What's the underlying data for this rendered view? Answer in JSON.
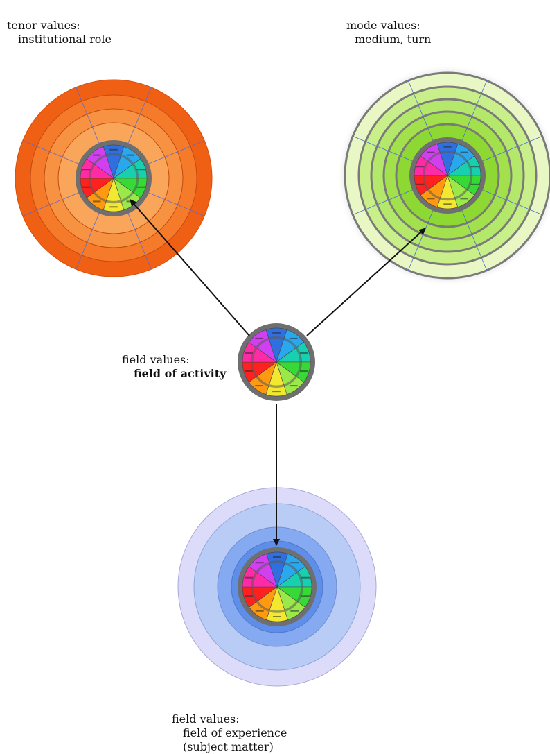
{
  "labels": {
    "tenor": {
      "line1": "tenor values:",
      "line2": "institutional role"
    },
    "mode": {
      "line1": "mode values:",
      "line2": "medium, turn"
    },
    "field_activity": {
      "line1": "field values:",
      "line2": "field of activity"
    },
    "field_experience": {
      "line1": "field values:",
      "line2": "field of experience",
      "line3": "(subject matter)"
    }
  },
  "colors": {
    "wheel_segments": [
      "#2f6fe0",
      "#2aa8ee",
      "#18d0b0",
      "#36d936",
      "#9be84a",
      "#f2e830",
      "#ff9a10",
      "#ff2020",
      "#ff2aa6",
      "#d040f0"
    ],
    "tenor_rings": [
      "#ef5f14",
      "#f57b2a",
      "#f79242",
      "#f9a55a"
    ],
    "mode_rings": [
      "#e8f7c4",
      "#c8ef8a",
      "#b4e86a",
      "#a2e04c",
      "#8ed834"
    ],
    "experience_rings": [
      "#dcdcfa",
      "#b9ccf5",
      "#86aaf2",
      "#5f8ee8"
    ],
    "wheel_rim": "#6f6f6f",
    "arrow": "#111111"
  }
}
